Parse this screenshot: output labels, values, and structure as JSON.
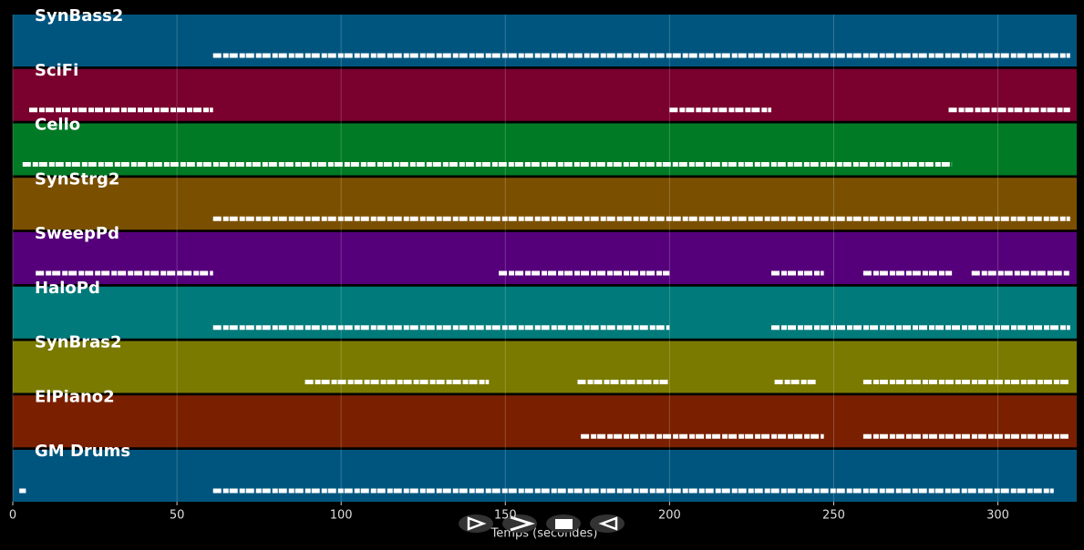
{
  "chart_data": {
    "type": "pianoroll",
    "xlabel": "Temps (secondes)",
    "xlim": [
      0,
      324
    ],
    "xticks": [
      0,
      50,
      100,
      150,
      200,
      250,
      300
    ],
    "grid": true,
    "tracks": [
      {
        "name": "SynBass2",
        "color": "#00557f",
        "segments": [
          [
            61,
            322
          ]
        ]
      },
      {
        "name": "SciFi",
        "color": "#7a002d",
        "segments": [
          [
            5,
            61
          ],
          [
            200,
            231
          ],
          [
            285,
            322
          ]
        ]
      },
      {
        "name": "Cello",
        "color": "#007a25",
        "segments": [
          [
            3,
            286
          ]
        ]
      },
      {
        "name": "SynStrg2",
        "color": "#7a5000",
        "segments": [
          [
            61,
            322
          ]
        ]
      },
      {
        "name": "SweepPd",
        "color": "#55007a",
        "segments": [
          [
            7,
            61
          ],
          [
            148,
            200
          ],
          [
            231,
            247
          ],
          [
            259,
            286
          ],
          [
            292,
            322
          ]
        ]
      },
      {
        "name": "HaloPd",
        "color": "#007a7a",
        "segments": [
          [
            61,
            200
          ],
          [
            231,
            322
          ]
        ]
      },
      {
        "name": "SynBras2",
        "color": "#7a7a00",
        "segments": [
          [
            89,
            145
          ],
          [
            172,
            200
          ],
          [
            232,
            245
          ],
          [
            259,
            322
          ]
        ]
      },
      {
        "name": "ElPiano2",
        "color": "#7a2000",
        "segments": [
          [
            173,
            247
          ],
          [
            259,
            322
          ]
        ]
      },
      {
        "name": "GM Drums",
        "color": "#00557f",
        "segments": [
          [
            2,
            4
          ],
          [
            61,
            317
          ]
        ]
      }
    ]
  }
}
